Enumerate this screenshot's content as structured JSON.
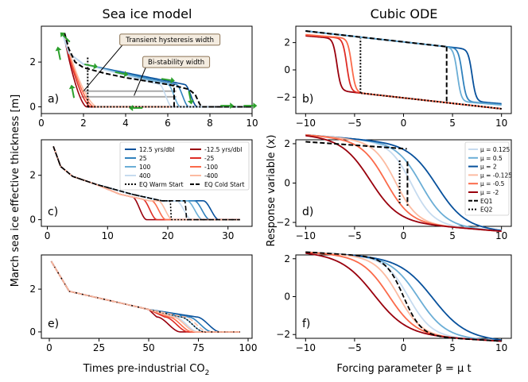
{
  "chart_data": {
    "type": "line",
    "col_titles": [
      "Sea ice model",
      "Cubic ODE"
    ],
    "left_ylabel": "March sea ice effective thickness [m]",
    "right_ylabel": "Response variable (x)",
    "left_xlabel": "Times pre-industrial CO",
    "left_xlabel_sub": "2",
    "right_xlabel": "Forcing parameter β = μ t",
    "colors": {
      "b_dark": "#08519c",
      "b_mid": "#3182bd",
      "b_light": "#6baed6",
      "b_pale": "#c6dbef",
      "r_dark": "#99000d",
      "r_mid": "#de2d26",
      "r_light": "#fb6a4a",
      "r_pale": "#fcbba1",
      "green": "#2ca02c",
      "gray": "#aaaaaa",
      "box": "#f4ece0",
      "box_edge": "#8b7355",
      "black": "#000000"
    },
    "panels": [
      {
        "id": "a",
        "label": "a)",
        "xlim": [
          0,
          10
        ],
        "ylim": [
          -0.3,
          3.6
        ],
        "xticks": [
          0,
          2,
          4,
          6,
          8,
          10
        ],
        "yticks": [
          0,
          2
        ],
        "xtick_labels": [
          "0",
          "2",
          "4",
          "6",
          "8",
          "10"
        ],
        "ytick_labels": [
          "0",
          "2"
        ],
        "annotations": [
          {
            "text": "Transient hysteresis width",
            "at": [
              2.0,
              0.7
            ],
            "label_at": [
              6.1,
              3.0
            ]
          },
          {
            "text": "Bi-stability width",
            "at": [
              4.4,
              0.5
            ],
            "label_at": [
              6.4,
              2.0
            ]
          }
        ],
        "series": [
          {
            "name": "decline",
            "x": [
              1.1,
              1.3,
              1.6,
              2.0,
              3.0,
              4.0,
              5.0,
              6.0,
              6.6,
              7.0,
              7.3,
              7.5,
              7.6,
              8.0,
              10.0
            ],
            "y": [
              3.3,
              2.6,
              2.0,
              1.75,
              1.5,
              1.3,
              1.15,
              1.0,
              0.88,
              0.78,
              0.55,
              0.15,
              0.0,
              0.0,
              0.0
            ]
          },
          {
            "name": "recovery",
            "x": [
              10.0,
              2.5,
              2.2,
              1.95,
              1.8,
              1.6,
              1.45,
              1.3,
              1.1
            ],
            "y": [
              0.0,
              0.0,
              0.05,
              0.3,
              1.0,
              2.1,
              2.8,
              3.2,
              3.3
            ]
          }
        ]
      },
      {
        "id": "b",
        "label": "b)",
        "xlim": [
          -11,
          11
        ],
        "ylim": [
          -3.2,
          3.2
        ],
        "xticks": [
          -10,
          -5,
          0,
          5,
          10
        ],
        "yticks": [
          -2,
          0,
          2
        ],
        "xtick_labels": [
          "−10",
          "−5",
          "0",
          "5",
          "10"
        ],
        "ytick_labels": [
          "−2",
          "0",
          "2"
        ],
        "cubic": {
          "fast": [
            7.0,
            6.0,
            5.5
          ],
          "slow": [
            -6.8,
            -5.8,
            -5.3
          ],
          "eq": [
            4.4,
            -4.4
          ]
        }
      },
      {
        "id": "c",
        "label": "c)",
        "xlim": [
          -1,
          34
        ],
        "ylim": [
          -0.3,
          3.6
        ],
        "xticks": [
          0,
          10,
          20,
          30
        ],
        "yticks": [
          0,
          2
        ],
        "xtick_labels": [
          "0",
          "10",
          "20",
          "30"
        ],
        "ytick_labels": [
          "0",
          "2"
        ],
        "legend": [
          "12.5 yrs/dbl",
          "-12.5 yrs/dbl",
          "25",
          "-25",
          "100",
          "-100",
          "400",
          "-400",
          "EQ Warm Start",
          "EQ Cold Start"
        ],
        "ends": [
          [
            28.5,
            27.0,
            25.8,
            24.0
          ],
          [
            16.5,
            18.2,
            19.7,
            20.8
          ],
          [
            20.6,
            23.1
          ]
        ]
      },
      {
        "id": "d",
        "label": "d)",
        "xlim": [
          -11,
          11
        ],
        "ylim": [
          -2.2,
          2.2
        ],
        "xticks": [
          -10,
          -5,
          0,
          5,
          10
        ],
        "yticks": [
          -2,
          0,
          2
        ],
        "xtick_labels": [
          "−10",
          "−5",
          "0",
          "5",
          "10"
        ],
        "ytick_labels": [
          "−2",
          "0",
          "2"
        ],
        "legend": [
          "μ = 0.125",
          "μ = 0.5",
          "μ = 2",
          "μ = -0.125",
          "μ = -0.5",
          "μ = -2",
          "EQ1",
          "EQ2"
        ],
        "shifts": [
          [
            0.8,
            1.8,
            3.4
          ],
          [
            -0.8,
            -1.8,
            -3.4
          ]
        ]
      },
      {
        "id": "e",
        "label": "e)",
        "xlim": [
          -4,
          102
        ],
        "ylim": [
          -0.3,
          3.6
        ],
        "xticks": [
          0,
          25,
          50,
          75,
          100
        ],
        "yticks": [
          0,
          2
        ],
        "xtick_labels": [
          "0",
          "25",
          "50",
          "75",
          "100"
        ],
        "ytick_labels": [
          "0",
          "2"
        ],
        "ends": [
          [
            86,
            82,
            78,
            75
          ],
          [
            66,
            70,
            72,
            74
          ]
        ]
      },
      {
        "id": "f",
        "label": "f)",
        "xlim": [
          -11,
          11
        ],
        "ylim": [
          -2.2,
          2.2
        ],
        "xticks": [
          -10,
          -5,
          0,
          5,
          10
        ],
        "yticks": [
          -2,
          0,
          2
        ],
        "xtick_labels": [
          "−10",
          "−5",
          "0",
          "5",
          "10"
        ],
        "ytick_labels": [
          "−2",
          "0",
          "2"
        ],
        "shifts": [
          [
            0.5,
            1.5,
            3.0
          ],
          [
            -0.5,
            -1.5,
            -3.0
          ]
        ]
      }
    ]
  }
}
